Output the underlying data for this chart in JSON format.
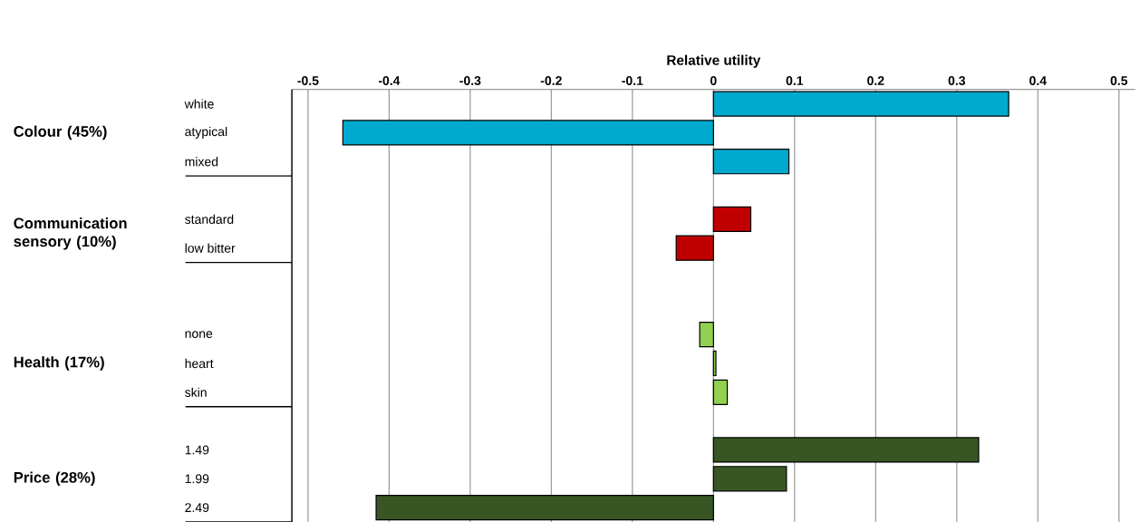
{
  "chart_data": {
    "type": "bar",
    "orientation": "horizontal",
    "xlabel": "Relative utility",
    "categories": [
      "white",
      "atypical",
      "mixed",
      null,
      "standard",
      "low bitter",
      null,
      null,
      "none",
      "heart",
      "skin",
      null,
      "1.49",
      "1.99",
      "2.49"
    ],
    "values": [
      0.364,
      -0.457,
      0.093,
      null,
      0.046,
      -0.046,
      null,
      null,
      -0.017,
      0.003,
      0.017,
      null,
      0.327,
      0.09,
      -0.416
    ],
    "colors": [
      "#00a9ce",
      "#00a9ce",
      "#00a9ce",
      null,
      "#c00000",
      "#c00000",
      null,
      null,
      "#92d050",
      "#92d050",
      "#92d050",
      null,
      "#375623",
      "#375623",
      "#375623"
    ],
    "xlim": [
      -0.52,
      0.52
    ],
    "xticks": [
      -0.5,
      -0.4,
      -0.3,
      -0.2,
      -0.1,
      0,
      0.1,
      0.2,
      0.3,
      0.4,
      0.5
    ],
    "grid": "x",
    "annotations": [
      "Colour (45%)",
      "Communication sensory (10%)",
      "Health (17%)",
      "Price (28%)"
    ]
  }
}
